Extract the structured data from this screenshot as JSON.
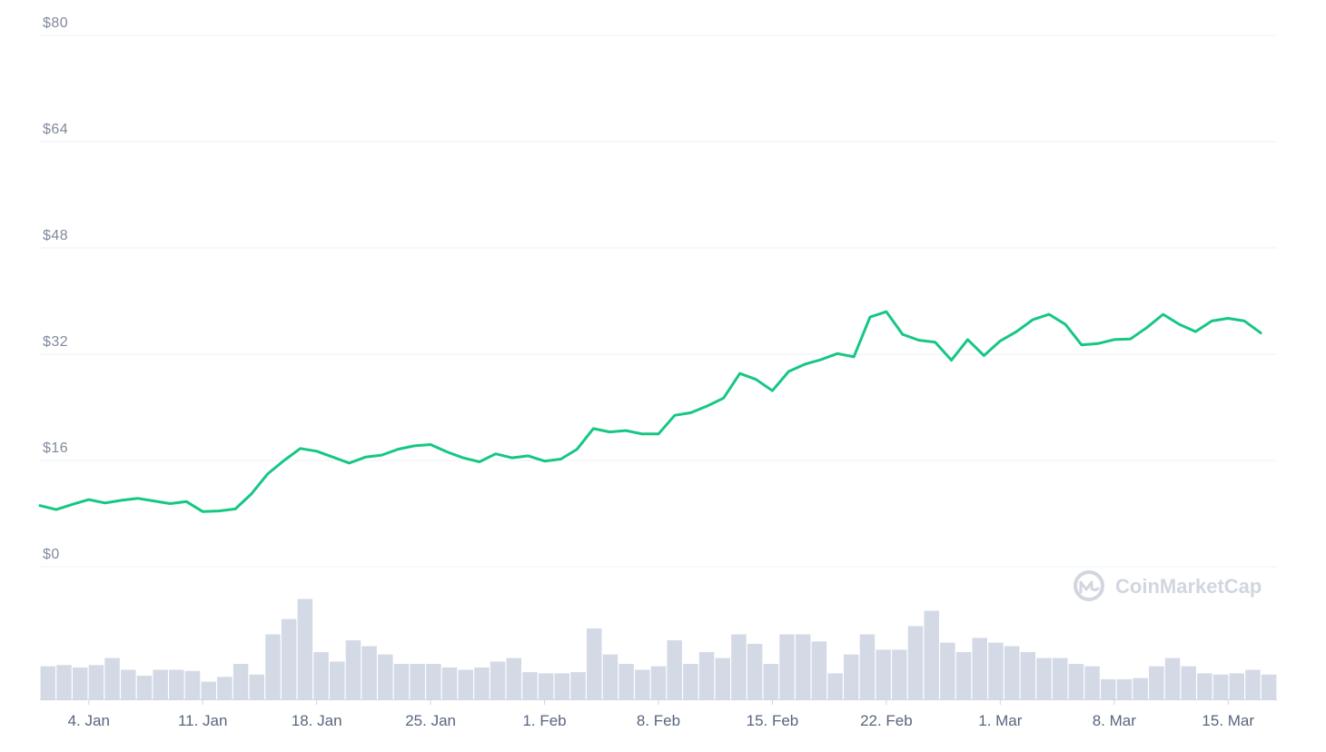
{
  "chart_data": {
    "type": "line",
    "y_axis": {
      "min": 0,
      "max": 80,
      "ticks": [
        "$0",
        "$16",
        "$32",
        "$48",
        "$64",
        "$80"
      ]
    },
    "x_ticks": [
      "4. Jan",
      "11. Jan",
      "18. Jan",
      "25. Jan",
      "1. Feb",
      "8. Feb",
      "15. Feb",
      "22. Feb",
      "1. Mar",
      "8. Mar",
      "15. Mar"
    ],
    "x_range": [
      "2021-01-01",
      "2021-03-18"
    ],
    "series": [
      {
        "color": "#16c784",
        "points": [
          [
            "2021-01-01",
            9.2
          ],
          [
            "2021-01-02",
            8.6
          ],
          [
            "2021-01-03",
            9.4
          ],
          [
            "2021-01-04",
            10.1
          ],
          [
            "2021-01-05",
            9.6
          ],
          [
            "2021-01-06",
            10.0
          ],
          [
            "2021-01-07",
            10.3
          ],
          [
            "2021-01-08",
            9.9
          ],
          [
            "2021-01-09",
            9.5
          ],
          [
            "2021-01-10",
            9.8
          ],
          [
            "2021-01-11",
            8.3
          ],
          [
            "2021-01-12",
            8.4
          ],
          [
            "2021-01-13",
            8.7
          ],
          [
            "2021-01-14",
            11.0
          ],
          [
            "2021-01-15",
            14.0
          ],
          [
            "2021-01-16",
            16.0
          ],
          [
            "2021-01-17",
            17.8
          ],
          [
            "2021-01-18",
            17.4
          ],
          [
            "2021-01-19",
            16.5
          ],
          [
            "2021-01-20",
            15.6
          ],
          [
            "2021-01-21",
            16.5
          ],
          [
            "2021-01-22",
            16.8
          ],
          [
            "2021-01-23",
            17.7
          ],
          [
            "2021-01-24",
            18.2
          ],
          [
            "2021-01-25",
            18.4
          ],
          [
            "2021-01-26",
            17.3
          ],
          [
            "2021-01-27",
            16.4
          ],
          [
            "2021-01-28",
            15.8
          ],
          [
            "2021-01-29",
            17.0
          ],
          [
            "2021-01-30",
            16.4
          ],
          [
            "2021-01-31",
            16.7
          ],
          [
            "2021-02-01",
            15.9
          ],
          [
            "2021-02-02",
            16.2
          ],
          [
            "2021-02-03",
            17.7
          ],
          [
            "2021-02-04",
            20.8
          ],
          [
            "2021-02-05",
            20.3
          ],
          [
            "2021-02-06",
            20.5
          ],
          [
            "2021-02-07",
            20.0
          ],
          [
            "2021-02-08",
            20.0
          ],
          [
            "2021-02-09",
            22.8
          ],
          [
            "2021-02-10",
            23.2
          ],
          [
            "2021-02-11",
            24.2
          ],
          [
            "2021-02-12",
            25.4
          ],
          [
            "2021-02-13",
            29.1
          ],
          [
            "2021-02-14",
            28.2
          ],
          [
            "2021-02-15",
            26.5
          ],
          [
            "2021-02-16",
            29.4
          ],
          [
            "2021-02-17",
            30.5
          ],
          [
            "2021-02-18",
            31.2
          ],
          [
            "2021-02-19",
            32.1
          ],
          [
            "2021-02-20",
            31.6
          ],
          [
            "2021-02-21",
            37.6
          ],
          [
            "2021-02-22",
            38.4
          ],
          [
            "2021-02-23",
            35.0
          ],
          [
            "2021-02-24",
            34.1
          ],
          [
            "2021-02-25",
            33.8
          ],
          [
            "2021-02-26",
            31.1
          ],
          [
            "2021-02-27",
            34.2
          ],
          [
            "2021-02-28",
            31.8
          ],
          [
            "2021-03-01",
            34.0
          ],
          [
            "2021-03-02",
            35.4
          ],
          [
            "2021-03-03",
            37.2
          ],
          [
            "2021-03-04",
            38.0
          ],
          [
            "2021-03-05",
            36.5
          ],
          [
            "2021-03-06",
            33.4
          ],
          [
            "2021-03-07",
            33.6
          ],
          [
            "2021-03-08",
            34.2
          ],
          [
            "2021-03-09",
            34.3
          ],
          [
            "2021-03-10",
            36.0
          ],
          [
            "2021-03-11",
            38.0
          ],
          [
            "2021-03-12",
            36.5
          ],
          [
            "2021-03-13",
            35.4
          ],
          [
            "2021-03-14",
            37.0
          ],
          [
            "2021-03-15",
            37.4
          ],
          [
            "2021-03-16",
            37.0
          ],
          [
            "2021-03-17",
            35.2
          ]
        ]
      }
    ],
    "volume": {
      "color": "#d4d9e6",
      "relative_values": [
        0.28,
        0.29,
        0.27,
        0.29,
        0.35,
        0.25,
        0.2,
        0.25,
        0.25,
        0.24,
        0.15,
        0.19,
        0.3,
        0.21,
        0.55,
        0.68,
        0.85,
        0.4,
        0.32,
        0.5,
        0.45,
        0.38,
        0.3,
        0.3,
        0.3,
        0.27,
        0.25,
        0.27,
        0.32,
        0.35,
        0.23,
        0.22,
        0.22,
        0.23,
        0.6,
        0.38,
        0.3,
        0.25,
        0.28,
        0.5,
        0.3,
        0.4,
        0.35,
        0.55,
        0.47,
        0.3,
        0.55,
        0.55,
        0.49,
        0.22,
        0.38,
        0.55,
        0.42,
        0.42,
        0.62,
        0.75,
        0.48,
        0.4,
        0.52,
        0.48,
        0.45,
        0.4,
        0.35,
        0.35,
        0.3,
        0.28,
        0.17,
        0.17,
        0.18,
        0.28,
        0.35,
        0.28,
        0.22,
        0.21,
        0.22,
        0.25,
        0.21
      ]
    }
  },
  "watermark": {
    "text": "CoinMarketCap"
  }
}
